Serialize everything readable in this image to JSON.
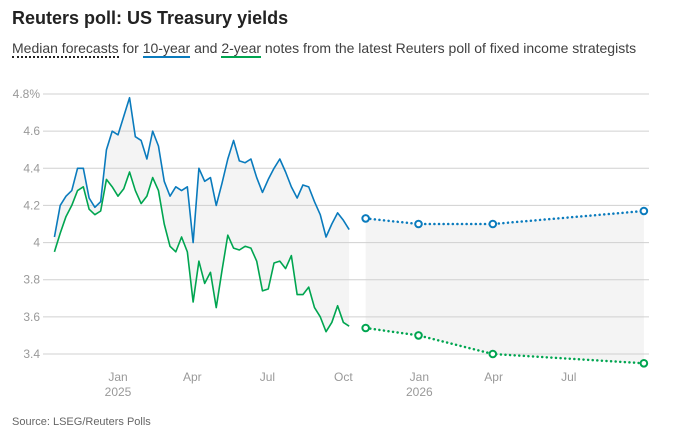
{
  "title": "Reuters poll: US Treasury yields",
  "subtitle": {
    "part1": "Median forecasts",
    "part2": " for ",
    "part3": "10-year",
    "part4": " and ",
    "part5": "2-year",
    "part6": " notes from the latest Reuters poll of fixed income strategists"
  },
  "source": "Source: LSEG/Reuters Polls",
  "colors": {
    "ten_year": "#0a7bbd",
    "two_year": "#00a550",
    "band": "#f4f4f4",
    "grid": "#d0d0d0"
  },
  "chart_data": {
    "type": "line",
    "ylim": [
      3.4,
      4.8
    ],
    "yticks": [
      {
        "v": 4.8,
        "label": "4.8%"
      },
      {
        "v": 4.6,
        "label": "4.6"
      },
      {
        "v": 4.4,
        "label": "4.4"
      },
      {
        "v": 4.2,
        "label": "4.2"
      },
      {
        "v": 4.0,
        "label": "4"
      },
      {
        "v": 3.8,
        "label": "3.8"
      },
      {
        "v": 3.6,
        "label": "3.6"
      },
      {
        "v": 3.4,
        "label": "3.4"
      }
    ],
    "xticks": [
      {
        "date": "2025-01-01",
        "label": "Jan",
        "sub": "2025"
      },
      {
        "date": "2025-04-01",
        "label": "Apr",
        "sub": ""
      },
      {
        "date": "2025-07-01",
        "label": "Jul",
        "sub": ""
      },
      {
        "date": "2025-10-01",
        "label": "Oct",
        "sub": ""
      },
      {
        "date": "2026-01-01",
        "label": "Jan",
        "sub": "2026"
      },
      {
        "date": "2026-04-01",
        "label": "Apr",
        "sub": ""
      },
      {
        "date": "2026-07-01",
        "label": "Jul",
        "sub": ""
      }
    ],
    "grid": true,
    "dates": [
      "2024-10-16",
      "2024-10-23",
      "2024-10-30",
      "2024-11-06",
      "2024-11-13",
      "2024-11-20",
      "2024-11-27",
      "2024-12-04",
      "2024-12-11",
      "2024-12-18",
      "2024-12-25",
      "2025-01-01",
      "2025-01-08",
      "2025-01-15",
      "2025-01-22",
      "2025-01-29",
      "2025-02-05",
      "2025-02-12",
      "2025-02-19",
      "2025-02-26",
      "2025-03-05",
      "2025-03-12",
      "2025-03-19",
      "2025-03-26",
      "2025-04-02",
      "2025-04-09",
      "2025-04-16",
      "2025-04-23",
      "2025-04-30",
      "2025-05-07",
      "2025-05-14",
      "2025-05-21",
      "2025-05-28",
      "2025-06-04",
      "2025-06-11",
      "2025-06-18",
      "2025-06-25",
      "2025-07-02",
      "2025-07-09",
      "2025-07-16",
      "2025-07-23",
      "2025-07-30",
      "2025-08-06",
      "2025-08-13",
      "2025-08-20",
      "2025-08-27",
      "2025-09-03",
      "2025-09-10",
      "2025-09-17",
      "2025-09-24",
      "2025-10-01",
      "2025-10-08"
    ],
    "series": [
      {
        "key": "ten_year",
        "values": [
          4.03,
          4.2,
          4.25,
          4.28,
          4.4,
          4.4,
          4.24,
          4.19,
          4.22,
          4.5,
          4.6,
          4.58,
          4.68,
          4.78,
          4.57,
          4.55,
          4.45,
          4.6,
          4.52,
          4.33,
          4.25,
          4.3,
          4.28,
          4.3,
          4.0,
          4.4,
          4.33,
          4.35,
          4.2,
          4.32,
          4.45,
          4.55,
          4.44,
          4.43,
          4.45,
          4.35,
          4.27,
          4.34,
          4.4,
          4.45,
          4.38,
          4.3,
          4.24,
          4.31,
          4.3,
          4.22,
          4.15,
          4.03,
          4.1,
          4.16,
          4.12,
          4.07
        ],
        "forecast": {
          "dates": [
            "2025-10-28",
            "2025-12-31",
            "2026-03-31",
            "2026-09-30"
          ],
          "values": [
            4.13,
            4.1,
            4.1,
            4.17
          ]
        }
      },
      {
        "key": "two_year",
        "values": [
          3.95,
          4.05,
          4.14,
          4.2,
          4.28,
          4.3,
          4.18,
          4.15,
          4.17,
          4.34,
          4.3,
          4.25,
          4.29,
          4.38,
          4.28,
          4.21,
          4.25,
          4.35,
          4.28,
          4.1,
          3.98,
          3.95,
          4.03,
          3.95,
          3.68,
          3.9,
          3.78,
          3.84,
          3.65,
          3.85,
          4.04,
          3.97,
          3.96,
          3.98,
          3.97,
          3.9,
          3.74,
          3.75,
          3.89,
          3.9,
          3.86,
          3.93,
          3.72,
          3.72,
          3.76,
          3.65,
          3.6,
          3.52,
          3.57,
          3.66,
          3.57,
          3.55
        ],
        "forecast": {
          "dates": [
            "2025-10-28",
            "2025-12-31",
            "2026-03-31",
            "2026-09-30"
          ],
          "values": [
            3.54,
            3.5,
            3.4,
            3.35
          ]
        }
      }
    ]
  }
}
